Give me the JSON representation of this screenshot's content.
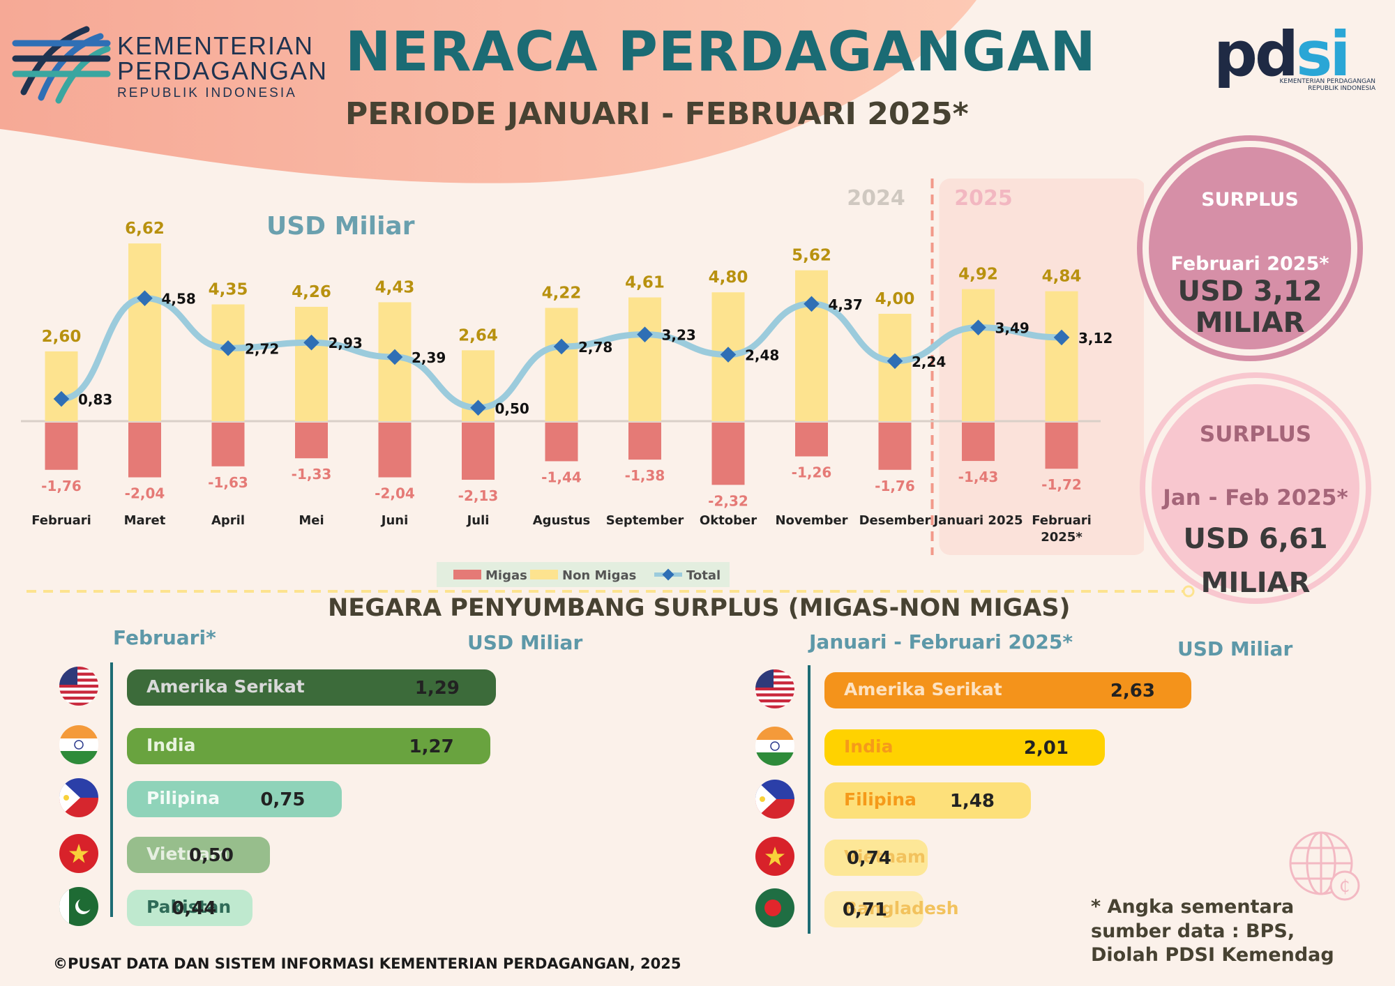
{
  "header": {
    "ministry_line1": "KEMENTERIAN",
    "ministry_line2": "PERDAGANGAN",
    "ministry_line3": "REPUBLIK INDONESIA",
    "title": "NERACA PERDAGANGAN",
    "subtitle": "PERIODE JANUARI - FEBRUARI 2025*",
    "pdsi_logo": "pdsi",
    "pdsi_sub1": "KEMENTERIAN PERDAGANGAN",
    "pdsi_sub2": "REPUBLIK INDONESIA"
  },
  "surplus_cards": [
    {
      "label1": "SURPLUS",
      "label2": "Februari 2025*",
      "amount1": "USD 3,12",
      "amount2": "MILIAR",
      "color": "#d68fa7"
    },
    {
      "label1": "SURPLUS",
      "label2": "Jan - Feb 2025*",
      "amount1": "USD 6,61",
      "amount2": "MILIAR",
      "color": "#f8c7cf"
    }
  ],
  "chart_data": {
    "type": "bar",
    "unit_label": "USD Miliar",
    "year_labels": [
      "2024",
      "2025"
    ],
    "categories": [
      "Februari",
      "Maret",
      "April",
      "Mei",
      "Juni",
      "Juli",
      "Agustus",
      "September",
      "Oktober",
      "November",
      "Desember",
      "Januari 2025",
      "Februari 2025*"
    ],
    "series": [
      {
        "name": "Migas",
        "type": "bar",
        "color": "#e57a76",
        "values": [
          -1.76,
          -2.04,
          -1.63,
          -1.33,
          -2.04,
          -2.13,
          -1.44,
          -1.38,
          -2.32,
          -1.26,
          -1.76,
          -1.43,
          -1.72
        ],
        "labels": [
          "-1,76",
          "-2,04",
          "-1,63",
          "-1,33",
          "-2,04",
          "-2,13",
          "-1,44",
          "-1,38",
          "-2,32",
          "-1,26",
          "-1,76",
          "-1,43",
          "-1,72"
        ]
      },
      {
        "name": "Non Migas",
        "type": "bar",
        "color": "#fde38f",
        "values": [
          2.6,
          6.62,
          4.35,
          4.26,
          4.43,
          2.64,
          4.22,
          4.61,
          4.8,
          5.62,
          4.0,
          4.92,
          4.84
        ],
        "labels": [
          "2,60",
          "6,62",
          "4,35",
          "4,26",
          "4,43",
          "2,64",
          "4,22",
          "4,61",
          "4,80",
          "5,62",
          "4,00",
          "4,92",
          "4,84"
        ]
      },
      {
        "name": "Total",
        "type": "line",
        "color": "#9bcbdc",
        "marker_color": "#2f6fb5",
        "values": [
          0.83,
          4.58,
          2.72,
          2.93,
          2.39,
          0.5,
          2.78,
          3.23,
          2.48,
          4.37,
          2.24,
          3.49,
          3.12
        ],
        "labels": [
          "0,83",
          "4,58",
          "2,72",
          "2,93",
          "2,39",
          "0,50",
          "2,78",
          "3,23",
          "2,48",
          "4,37",
          "2,24",
          "3,49",
          "3,12"
        ]
      }
    ],
    "ylim": [
      -2.6,
      7.0
    ],
    "legend": "bottom-center"
  },
  "contributors": {
    "title": "NEGARA PENYUMBANG SURPLUS (MIGAS-NON MIGAS)",
    "left": {
      "heading": "Februari*",
      "unit": "USD Miliar",
      "items": [
        {
          "country": "Amerika Serikat",
          "value": 1.29,
          "label": "1,29",
          "color": "#3c6b3a",
          "text_color": "#d9d9d9",
          "flag": "us-flag-icon"
        },
        {
          "country": "India",
          "value": 1.27,
          "label": "1,27",
          "color": "#69a33f",
          "text_color": "#e9f3df",
          "flag": "india-flag-icon"
        },
        {
          "country": "Pilipina",
          "value": 0.75,
          "label": "0,75",
          "color": "#8fd3b9",
          "text_color": "#f3fbf7",
          "flag": "philippines-flag-icon"
        },
        {
          "country": "Vietnam",
          "value": 0.5,
          "label": "0,50",
          "color": "#97be8c",
          "text_color": "#e6efe1",
          "flag": "vietnam-flag-icon"
        },
        {
          "country": "Pakistan",
          "value": 0.44,
          "label": "0,44",
          "color": "#bfe9cf",
          "text_color": "#2f6b58",
          "flag": "pakistan-flag-icon"
        }
      ]
    },
    "right": {
      "heading": "Januari - Februari 2025*",
      "unit": "USD Miliar",
      "items": [
        {
          "country": "Amerika Serikat",
          "value": 2.63,
          "label": "2,63",
          "color": "#f4931b",
          "text_color": "#fde2c2",
          "flag": "us-flag-icon"
        },
        {
          "country": "India",
          "value": 2.01,
          "label": "2,01",
          "color": "#ffd200",
          "text_color": "#f59a1a",
          "flag": "india-flag-icon"
        },
        {
          "country": "Filipina",
          "value": 1.48,
          "label": "1,48",
          "color": "#fde07a",
          "text_color": "#f59a1a",
          "flag": "philippines-flag-icon"
        },
        {
          "country": "Vietnam",
          "value": 0.74,
          "label": "0,74",
          "color": "#fde797",
          "text_color": "#f2c25d",
          "flag": "vietnam-flag-icon"
        },
        {
          "country": "Bangladesh",
          "value": 0.71,
          "label": "0,71",
          "color": "#fdebb0",
          "text_color": "#f2c25d",
          "flag": "bangladesh-flag-icon"
        }
      ]
    }
  },
  "notes": {
    "line1": "* Angka sementara",
    "line2": "sumber data : BPS,",
    "line3": "Diolah PDSI Kemendag"
  },
  "footer": "©PUSAT DATA DAN SISTEM INFORMASI KEMENTERIAN PERDAGANGAN, 2025"
}
